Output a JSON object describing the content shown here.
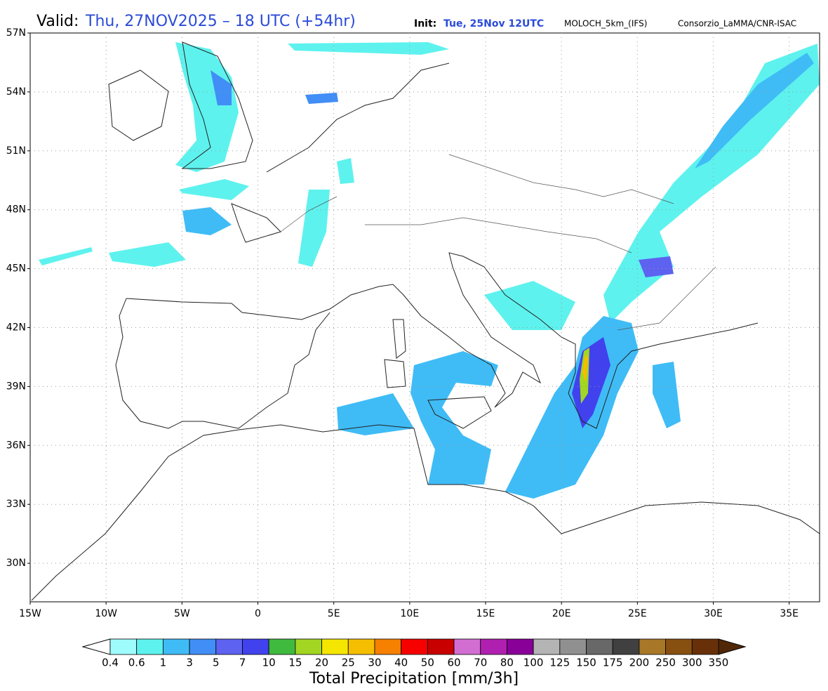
{
  "header": {
    "valid_label": "Valid:",
    "valid_value": "Thu, 27NOV2025 – 18 UTC (+54hr)",
    "init_label": "Init:",
    "init_value": "Tue, 25Nov 12UTC",
    "model": "MOLOCH_5km_(IFS)",
    "credit": "Consorzio_LaMMA/CNR-ISAC"
  },
  "map": {
    "lat_labels": [
      "57N",
      "54N",
      "51N",
      "48N",
      "45N",
      "42N",
      "39N",
      "36N",
      "33N",
      "30N"
    ],
    "lon_labels": [
      "15W",
      "10W",
      "5W",
      "0",
      "5E",
      "10E",
      "15E",
      "20E",
      "25E",
      "30E",
      "35E"
    ]
  },
  "legend": {
    "title": "Total Precipitation [mm/3h]",
    "labels": [
      "0.4",
      "0.6",
      "1",
      "3",
      "5",
      "7",
      "10",
      "15",
      "20",
      "25",
      "30",
      "40",
      "50",
      "60",
      "70",
      "80",
      "100",
      "125",
      "150",
      "175",
      "200",
      "250",
      "300",
      "350"
    ],
    "colors": [
      "#9ffcfc",
      "#5ef2ee",
      "#3fbcf6",
      "#418ef6",
      "#5e62f0",
      "#4141ee",
      "#3fba3f",
      "#a2d622",
      "#f4e600",
      "#f6be00",
      "#f68000",
      "#f60000",
      "#c80000",
      "#d26ed2",
      "#b020b0",
      "#880098",
      "#b4b4b4",
      "#909090",
      "#686868",
      "#404040",
      "#a87828",
      "#885010",
      "#683008"
    ],
    "under_color": "#ffffff",
    "over_color": "#502808"
  }
}
